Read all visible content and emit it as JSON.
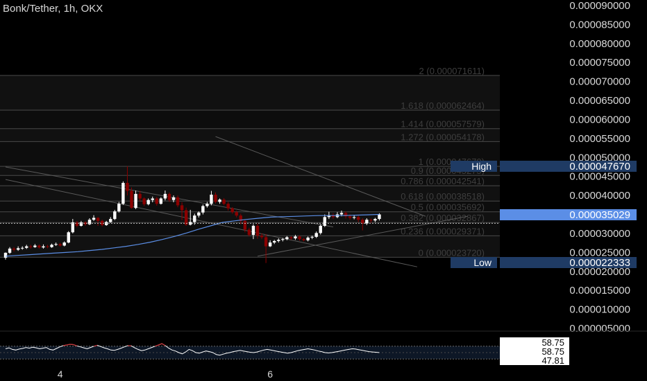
{
  "header": {
    "symbol": "Bonk/Tether",
    "interval": "1h",
    "exchange": "OKX"
  },
  "colors": {
    "background": "#000000",
    "up_candle": "#ffffff",
    "down_candle": "#8b0000",
    "ma_line": "#5b8ee6",
    "fib_line": "#4a4a4a",
    "fib_text": "#3e3e3e",
    "axis_text": "#d9d9d9",
    "label_bg": "#1f3b64",
    "price_tag_bg": "#5b8ee6",
    "rsi_line": "#ffffff",
    "rsi_overbought": "#c9343a"
  },
  "chart_data": [
    {
      "type": "candlestick",
      "title": "Bonk/Tether, 1h, OKX",
      "y_axis_ticks": [
        "0.000090000",
        "0.000085000",
        "0.000080000",
        "0.000075000",
        "0.000070000",
        "0.000065000",
        "0.000060000",
        "0.000055000",
        "0.000050000",
        "0.000045000",
        "0.000040000",
        "0.000035000",
        "0.000030000",
        "0.000025000",
        "0.000020000",
        "0.000015000",
        "0.000010000",
        "0.000005000"
      ],
      "ylim": [
        5e-06,
        9e-05
      ],
      "x_ticks": [
        {
          "label": "4",
          "index": 13
        },
        {
          "label": "6",
          "index": 63
        }
      ],
      "current_price": {
        "label": "0.000035029",
        "value": 3.5029e-05
      },
      "high": {
        "label": "High",
        "value_text": "0.000047670",
        "value": 4.767e-05
      },
      "low": {
        "label": "Low",
        "value_text": "0.000022333",
        "value": 2.2333e-05
      },
      "fib_levels": [
        {
          "ratio": "2",
          "value": "0.000071611"
        },
        {
          "ratio": "1.618",
          "value": "0.000062464"
        },
        {
          "ratio": "1.414",
          "value": "0.000057579"
        },
        {
          "ratio": "1.272",
          "value": "0.000054178"
        },
        {
          "ratio": "1",
          "value": "0.000047670"
        },
        {
          "ratio": "0.9",
          "value": "0.000045275"
        },
        {
          "ratio": "0.786",
          "value": "0.000042541"
        },
        {
          "ratio": "0.618",
          "value": "0.000038518"
        },
        {
          "ratio": "0.5",
          "value": "0.000035692"
        },
        {
          "ratio": "0.382",
          "value": "0.000032867"
        },
        {
          "ratio": "0.236",
          "value": "0.000029371"
        },
        {
          "ratio": "0",
          "value": "0.000023720"
        }
      ],
      "candles": [
        [
          2.36e-05,
          2.49e-05,
          2.31e-05,
          2.5e-05
        ],
        [
          2.49e-05,
          2.6e-05,
          2.46e-05,
          2.64e-05
        ],
        [
          2.6e-05,
          2.57e-05,
          2.52e-05,
          2.64e-05
        ],
        [
          2.57e-05,
          2.61e-05,
          2.54e-05,
          2.66e-05
        ],
        [
          2.61e-05,
          2.62e-05,
          2.57e-05,
          2.66e-05
        ],
        [
          2.62e-05,
          2.66e-05,
          2.59e-05,
          2.7e-05
        ],
        [
          2.66e-05,
          2.64e-05,
          2.6e-05,
          2.7e-05
        ],
        [
          2.64e-05,
          2.68e-05,
          2.62e-05,
          2.72e-05
        ],
        [
          2.68e-05,
          2.63e-05,
          2.6e-05,
          2.71e-05
        ],
        [
          2.63e-05,
          2.66e-05,
          2.6e-05,
          2.71e-05
        ],
        [
          2.66e-05,
          2.64e-05,
          2.61e-05,
          2.7e-05
        ],
        [
          2.64e-05,
          2.7e-05,
          2.62e-05,
          2.73e-05
        ],
        [
          2.7e-05,
          2.72e-05,
          2.67e-05,
          2.76e-05
        ],
        [
          2.72e-05,
          2.68e-05,
          2.65e-05,
          2.75e-05
        ],
        [
          2.68e-05,
          2.76e-05,
          2.66e-05,
          2.79e-05
        ],
        [
          2.76e-05,
          3.03e-05,
          2.74e-05,
          3.06e-05
        ],
        [
          3.03e-05,
          3.29e-05,
          3e-05,
          3.38e-05
        ],
        [
          3.29e-05,
          3.2e-05,
          3.16e-05,
          3.33e-05
        ],
        [
          3.2e-05,
          3.29e-05,
          3.18e-05,
          3.33e-05
        ],
        [
          3.29e-05,
          3.24e-05,
          3.2e-05,
          3.32e-05
        ],
        [
          3.24e-05,
          3.36e-05,
          3.22e-05,
          3.4e-05
        ],
        [
          3.36e-05,
          3.41e-05,
          3.33e-05,
          3.48e-05
        ],
        [
          3.41e-05,
          3.33e-05,
          3.2e-05,
          3.43e-05
        ],
        [
          3.33e-05,
          3.22e-05,
          3.18e-05,
          3.36e-05
        ],
        [
          3.22e-05,
          3.3e-05,
          3.2e-05,
          3.33e-05
        ],
        [
          3.3e-05,
          3.38e-05,
          3.28e-05,
          3.43e-05
        ],
        [
          3.38e-05,
          3.58e-05,
          3.35e-05,
          3.62e-05
        ],
        [
          3.58e-05,
          3.78e-05,
          3.55e-05,
          3.83e-05
        ],
        [
          3.78e-05,
          4.33e-05,
          3.75e-05,
          4.37e-05
        ],
        [
          4.33e-05,
          4.12e-05,
          4e-05,
          4.77e-05
        ],
        [
          4.12e-05,
          3.67e-05,
          3.65e-05,
          4.21e-05
        ],
        [
          3.67e-05,
          4.04e-05,
          3.64e-05,
          4.13e-05
        ],
        [
          4.04e-05,
          3.92e-05,
          3.85e-05,
          4.12e-05
        ],
        [
          3.92e-05,
          3.77e-05,
          3.72e-05,
          3.95e-05
        ],
        [
          3.77e-05,
          3.88e-05,
          3.74e-05,
          3.92e-05
        ],
        [
          3.88e-05,
          3.92e-05,
          3.82e-05,
          3.97e-05
        ],
        [
          3.92e-05,
          3.78e-05,
          3.73e-05,
          3.96e-05
        ],
        [
          3.78e-05,
          3.92e-05,
          3.76e-05,
          3.95e-05
        ],
        [
          3.92e-05,
          4.04e-05,
          3.87e-05,
          4.13e-05
        ],
        [
          4.04e-05,
          3.88e-05,
          3.83e-05,
          4.08e-05
        ],
        [
          3.88e-05,
          3.95e-05,
          3.82e-05,
          4e-05
        ],
        [
          3.95e-05,
          3.74e-05,
          3.69e-05,
          4e-05
        ],
        [
          3.74e-05,
          3.61e-05,
          3.35e-05,
          3.82e-05
        ],
        [
          3.61e-05,
          3.23e-05,
          3.2e-05,
          3.68e-05
        ],
        [
          3.23e-05,
          3.3e-05,
          3.21e-05,
          3.62e-05
        ],
        [
          3.3e-05,
          3.47e-05,
          3.23e-05,
          3.52e-05
        ],
        [
          3.47e-05,
          3.55e-05,
          3.42e-05,
          3.58e-05
        ],
        [
          3.55e-05,
          3.72e-05,
          3.5e-05,
          3.76e-05
        ],
        [
          3.72e-05,
          3.78e-05,
          3.68e-05,
          3.83e-05
        ],
        [
          3.78e-05,
          4.02e-05,
          3.74e-05,
          4.12e-05
        ],
        [
          4.02e-05,
          3.83e-05,
          3.79e-05,
          4.08e-05
        ],
        [
          3.83e-05,
          3.89e-05,
          3.78e-05,
          3.92e-05
        ],
        [
          3.89e-05,
          3.78e-05,
          3.74e-05,
          3.93e-05
        ],
        [
          3.78e-05,
          3.66e-05,
          3.6e-05,
          3.83e-05
        ],
        [
          3.66e-05,
          3.56e-05,
          3.52e-05,
          3.69e-05
        ],
        [
          3.56e-05,
          3.47e-05,
          3.42e-05,
          3.6e-05
        ],
        [
          3.47e-05,
          3.33e-05,
          3.24e-05,
          3.52e-05
        ],
        [
          3.33e-05,
          3.1e-05,
          3.03e-05,
          3.37e-05
        ],
        [
          3.1e-05,
          2.96e-05,
          2.92e-05,
          3.15e-05
        ],
        [
          2.96e-05,
          3.2e-05,
          2.85e-05,
          3.24e-05
        ],
        [
          3.2e-05,
          2.94e-05,
          2.86e-05,
          3.26e-05
        ],
        [
          2.94e-05,
          2.9e-05,
          2.85e-05,
          3e-05
        ],
        [
          2.9e-05,
          2.66e-05,
          2.22e-05,
          2.98e-05
        ],
        [
          2.66e-05,
          2.76e-05,
          2.64e-05,
          2.82e-05
        ],
        [
          2.76e-05,
          2.8e-05,
          2.72e-05,
          2.83e-05
        ],
        [
          2.8e-05,
          2.83e-05,
          2.76e-05,
          2.87e-05
        ],
        [
          2.83e-05,
          2.85e-05,
          2.79e-05,
          2.88e-05
        ],
        [
          2.85e-05,
          2.9e-05,
          2.82e-05,
          2.93e-05
        ],
        [
          2.9e-05,
          2.87e-05,
          2.83e-05,
          2.93e-05
        ],
        [
          2.87e-05,
          2.92e-05,
          2.83e-05,
          2.96e-05
        ],
        [
          2.92e-05,
          2.85e-05,
          2.81e-05,
          2.95e-05
        ],
        [
          2.85e-05,
          2.82e-05,
          2.79e-05,
          2.88e-05
        ],
        [
          2.82e-05,
          2.89e-05,
          2.79e-05,
          2.92e-05
        ],
        [
          2.89e-05,
          2.91e-05,
          2.85e-05,
          2.94e-05
        ],
        [
          2.91e-05,
          3.01e-05,
          2.88e-05,
          3.05e-05
        ],
        [
          3.01e-05,
          3.2e-05,
          2.97e-05,
          3.24e-05
        ],
        [
          3.2e-05,
          3.43e-05,
          3.17e-05,
          3.5e-05
        ],
        [
          3.43e-05,
          3.48e-05,
          3.38e-05,
          3.57e-05
        ],
        [
          3.48e-05,
          3.43e-05,
          3.38e-05,
          3.53e-05
        ],
        [
          3.43e-05,
          3.5e-05,
          3.4e-05,
          3.56e-05
        ],
        [
          3.5e-05,
          3.54e-05,
          3.45e-05,
          3.6e-05
        ],
        [
          3.54e-05,
          3.45e-05,
          3.39e-05,
          3.58e-05
        ],
        [
          3.45e-05,
          3.41e-05,
          3.36e-05,
          3.5e-05
        ],
        [
          3.41e-05,
          3.43e-05,
          3.37e-05,
          3.47e-05
        ],
        [
          3.43e-05,
          3.36e-05,
          3.3e-05,
          3.47e-05
        ],
        [
          3.36e-05,
          3.26e-05,
          3.08e-05,
          3.4e-05
        ],
        [
          3.26e-05,
          3.36e-05,
          3.22e-05,
          3.4e-05
        ],
        [
          3.36e-05,
          3.34e-05,
          3.28e-05,
          3.39e-05
        ],
        [
          3.34e-05,
          3.38e-05,
          3.3e-05,
          3.41e-05
        ],
        [
          3.38e-05,
          3.5e-05,
          3.34e-05,
          3.53e-05
        ]
      ],
      "ma_line": [
        2.4e-05,
        2.42e-05,
        2.44e-05,
        2.46e-05,
        2.48e-05,
        2.5e-05,
        2.52e-05,
        2.55e-05,
        2.58e-05,
        2.62e-05,
        2.66e-05,
        2.71e-05,
        2.77e-05,
        2.84e-05,
        2.92e-05,
        3.01e-05,
        3.11e-05,
        3.2e-05,
        3.29e-05,
        3.33e-05,
        3.37e-05,
        3.4e-05,
        3.43e-05,
        3.44e-05,
        3.45e-05,
        3.46e-05,
        3.47e-05,
        3.47e-05,
        3.47e-05,
        3.48e-05,
        3.49e-05,
        3.5e-05
      ],
      "trendlines": [
        {
          "name": "upper-channel",
          "from": [
            0,
            4.75e-05
          ],
          "to": [
            78,
            3.17e-05
          ]
        },
        {
          "name": "upper-channel-2",
          "from": [
            50,
            5.55e-05
          ],
          "to": [
            100,
            3.45e-05
          ]
        },
        {
          "name": "lower-channel",
          "from": [
            0,
            4.42e-05
          ],
          "to": [
            98,
            2.12e-05
          ]
        },
        {
          "name": "rising-support",
          "from": [
            60,
            2.4e-05
          ],
          "to": [
            110,
            3.45e-05
          ]
        }
      ]
    },
    {
      "type": "line",
      "title": "",
      "values_labels": [
        "58.75",
        "58.75",
        "47.81"
      ],
      "ylim": [
        0,
        100
      ],
      "overbought": 70,
      "oversold": 30,
      "series": [
        {
          "values": [
            62,
            65,
            60,
            58,
            61,
            63,
            66,
            64,
            67,
            65,
            62,
            64,
            66,
            60,
            58,
            63,
            68,
            72,
            74,
            76,
            75,
            71,
            68,
            65,
            62,
            66,
            70,
            73,
            69,
            65,
            62,
            58,
            57,
            60,
            64,
            68,
            72,
            71,
            65,
            60,
            56,
            58,
            62,
            66,
            70,
            74,
            78,
            72,
            64,
            58,
            55,
            50,
            46,
            52,
            60,
            56,
            50,
            48,
            52,
            55,
            53,
            50,
            44,
            42,
            45,
            48,
            50,
            53,
            55,
            57,
            55,
            53,
            51,
            50,
            52,
            55,
            58,
            60,
            58,
            56,
            54,
            52,
            50,
            48,
            50,
            53,
            56,
            58,
            60,
            62,
            60,
            58,
            55,
            53,
            50,
            49,
            50,
            52,
            54,
            56,
            58,
            60,
            62,
            61,
            59,
            57,
            55,
            53,
            52,
            51,
            50
          ]
        }
      ]
    }
  ],
  "rsi_panel": {
    "value_1": "58.75",
    "value_2": "58.75",
    "value_3": "47.81"
  }
}
